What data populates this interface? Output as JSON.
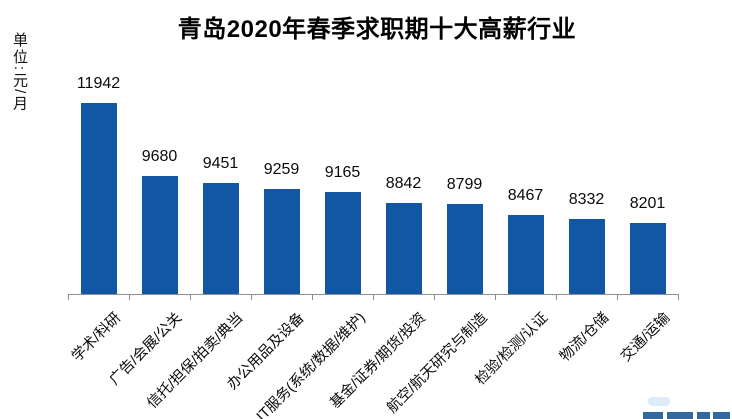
{
  "page": {
    "title": "青岛2020年春季求职期十大高薪行业",
    "unit_label": "单位:元/月"
  },
  "chart_data": {
    "type": "bar",
    "title": "青岛2020年春季求职期十大高薪行业",
    "ylabel": "单位:元/月",
    "categories": [
      "学术/科研",
      "广告/会展/公关",
      "信托/担保/拍卖/典当",
      "办公用品及设备",
      "IT服务(系统/数据/维护)",
      "基金/证券/期货/投资",
      "航空/航天研究与制造",
      "检验/检测/认证",
      "物流/仓储",
      "交通/运输"
    ],
    "values": [
      11942,
      9680,
      9451,
      9259,
      9165,
      8842,
      8799,
      8467,
      8332,
      8201
    ],
    "ylim": [
      6000,
      12000
    ],
    "grid": false,
    "legend": "none",
    "data_labels": "above-bars",
    "x_label_rotation_deg": 45,
    "colors": {
      "bar": "#1257a3",
      "title_text": "#000000",
      "axis_line": "#8e8e8e",
      "label_text": "#0a0a0a"
    }
  }
}
